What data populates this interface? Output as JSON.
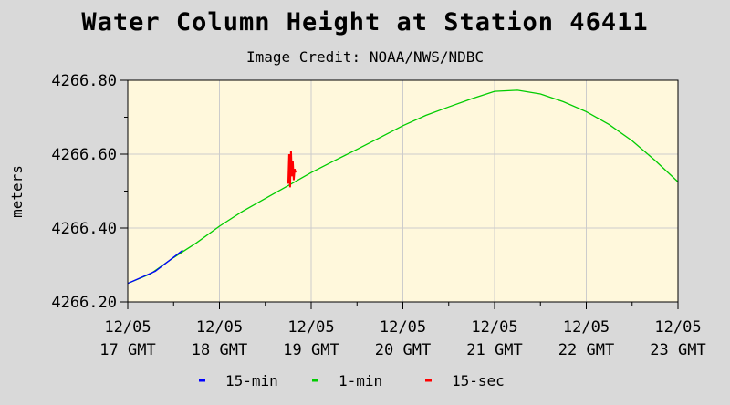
{
  "chart_data": {
    "type": "line",
    "title": "Water Column Height at Station 46411",
    "subtitle": "Image Credit: NOAA/NWS/NDBC",
    "ylabel": "meters",
    "xlabel": "",
    "ylim": [
      4266.2,
      4266.8
    ],
    "y_ticks": [
      "4266.20",
      "4266.40",
      "4266.60",
      "4266.80"
    ],
    "x_ticks": [
      {
        "line1": "12/05",
        "line2": "17 GMT"
      },
      {
        "line1": "12/05",
        "line2": "18 GMT"
      },
      {
        "line1": "12/05",
        "line2": "19 GMT"
      },
      {
        "line1": "12/05",
        "line2": "20 GMT"
      },
      {
        "line1": "12/05",
        "line2": "21 GMT"
      },
      {
        "line1": "12/05",
        "line2": "22 GMT"
      },
      {
        "line1": "12/05",
        "line2": "23 GMT"
      }
    ],
    "xlim_hours": [
      17,
      23
    ],
    "grid": true,
    "legend_position": "bottom",
    "series": [
      {
        "name": "15-min",
        "color": "#0000ff",
        "points": [
          [
            17.0,
            4266.25
          ],
          [
            17.3,
            4266.283
          ],
          [
            17.6,
            4266.34
          ]
        ]
      },
      {
        "name": "1-min",
        "color": "#00cc00",
        "points": [
          [
            17.0,
            4266.25
          ],
          [
            17.25,
            4266.276
          ],
          [
            17.5,
            4266.32
          ],
          [
            17.75,
            4266.36
          ],
          [
            18.0,
            4266.405
          ],
          [
            18.25,
            4266.445
          ],
          [
            18.5,
            4266.48
          ],
          [
            18.75,
            4266.515
          ],
          [
            19.0,
            4266.55
          ],
          [
            19.25,
            4266.582
          ],
          [
            19.5,
            4266.613
          ],
          [
            19.75,
            4266.645
          ],
          [
            20.0,
            4266.677
          ],
          [
            20.25,
            4266.705
          ],
          [
            20.5,
            4266.728
          ],
          [
            20.75,
            4266.75
          ],
          [
            21.0,
            4266.77
          ],
          [
            21.25,
            4266.773
          ],
          [
            21.5,
            4266.763
          ],
          [
            21.75,
            4266.742
          ],
          [
            22.0,
            4266.715
          ],
          [
            22.25,
            4266.68
          ],
          [
            22.5,
            4266.636
          ],
          [
            22.75,
            4266.583
          ],
          [
            23.0,
            4266.525
          ]
        ]
      },
      {
        "name": "15-sec",
        "color": "#ff0000",
        "points": [
          [
            18.75,
            4266.52
          ],
          [
            18.76,
            4266.6
          ],
          [
            18.77,
            4266.51
          ],
          [
            18.78,
            4266.61
          ],
          [
            18.79,
            4266.54
          ],
          [
            18.8,
            4266.58
          ],
          [
            18.81,
            4266.53
          ],
          [
            18.82,
            4266.56
          ],
          [
            18.83,
            4266.55
          ]
        ]
      }
    ]
  },
  "colors": {
    "page_background": "#d9d9d9",
    "plot_background": "#fff8dc",
    "grid": "#cccccc",
    "axis": "#000000"
  }
}
